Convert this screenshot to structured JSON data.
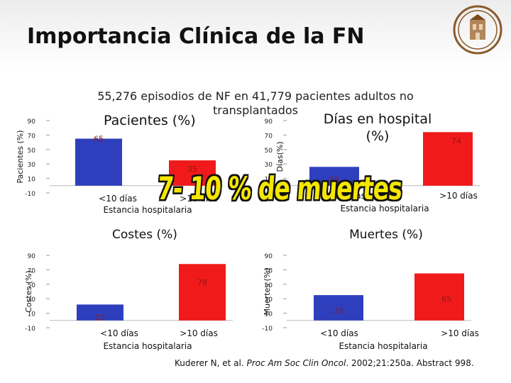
{
  "slide": {
    "title": "Importancia Clínica de la FN",
    "subtitle": "55,276 episodios de NF en 41,779 pacientes adultos no transplantados",
    "overlay_text": "7- 10 % de muertes",
    "footer": {
      "authors": "Kuderer N, et al.",
      "journal": "Proc Am Soc Clin Oncol",
      "rest": ". 2002;21:250a. Abstract 998."
    }
  },
  "colors": {
    "blue": "#2e3fbd",
    "red": "#f01a1a",
    "label_text": "#8a1a1a"
  },
  "chart_data": [
    {
      "type": "bar",
      "panel_title": "Pacientes (%)",
      "ylabel": "Pacientes (%)",
      "xlabel": "Estancia hospitalaria",
      "categories": [
        "<10 días",
        ">10 días"
      ],
      "values": [
        65,
        35
      ],
      "data_labels": [
        "65",
        "35"
      ],
      "ytick_labels": [
        "-10",
        "10",
        "30",
        "50",
        "70",
        "90"
      ],
      "ylim": [
        -10,
        90
      ],
      "colors": [
        "#2e3fbd",
        "#f01a1a"
      ]
    },
    {
      "type": "bar",
      "panel_title": "Días en hospital (%)",
      "ylabel": "Días(%)",
      "xlabel": "Estancia hospitalaria",
      "categories": [
        "<10 días",
        ">10 días"
      ],
      "values": [
        26,
        74
      ],
      "data_labels": [
        "26",
        "74"
      ],
      "ytick_labels": [
        "10",
        "30",
        "50",
        "70",
        "90"
      ],
      "ylim": [
        -10,
        90
      ],
      "colors": [
        "#2e3fbd",
        "#f01a1a"
      ]
    },
    {
      "type": "bar",
      "panel_title": "Costes (%)",
      "ylabel": "Costes (%)",
      "xlabel": "Estancia hospitalaria",
      "categories": [
        "<10 días",
        ">10 días"
      ],
      "values": [
        22,
        78
      ],
      "data_labels": [
        "22",
        "78"
      ],
      "ytick_labels": [
        "-10",
        "10",
        "30",
        "50",
        "70",
        "90"
      ],
      "ylim": [
        -10,
        90
      ],
      "colors": [
        "#2e3fbd",
        "#f01a1a"
      ]
    },
    {
      "type": "bar",
      "panel_title": "Muertes (%)",
      "ylabel": "Muertes (%)",
      "xlabel": "Estancia hospitalaria",
      "categories": [
        "<10 días",
        ">10 días"
      ],
      "values": [
        35,
        65
      ],
      "data_labels": [
        "35",
        "65"
      ],
      "ytick_labels": [
        "-10",
        "10",
        "30",
        "50",
        "70",
        "90"
      ],
      "ylim": [
        -10,
        90
      ],
      "colors": [
        "#2e3fbd",
        "#f01a1a"
      ]
    }
  ]
}
